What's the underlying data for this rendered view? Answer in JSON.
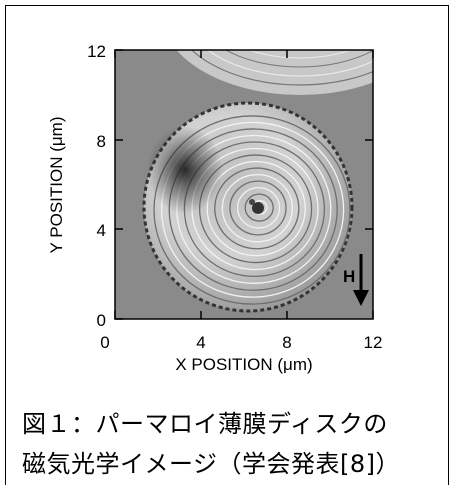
{
  "figure": {
    "x_axis": {
      "label": "X POSITION (μm)",
      "range": [
        0,
        12
      ],
      "ticks": [
        "0",
        "4",
        "8",
        "12"
      ]
    },
    "y_axis": {
      "label": "Y POSITION (μm)",
      "range": [
        0,
        12
      ],
      "ticks": [
        "0",
        "4",
        "8",
        "12"
      ]
    },
    "field_marker": {
      "label": "H",
      "icon": "down-arrow-icon",
      "direction": "down"
    },
    "image_description_icon": "magneto-optical-disk-image",
    "background_color": "#8a8a8a"
  },
  "caption": {
    "line1": "図１：パーマロイ薄膜ディスクの",
    "line2": "磁気光学イメージ（学会発表[8]）"
  }
}
